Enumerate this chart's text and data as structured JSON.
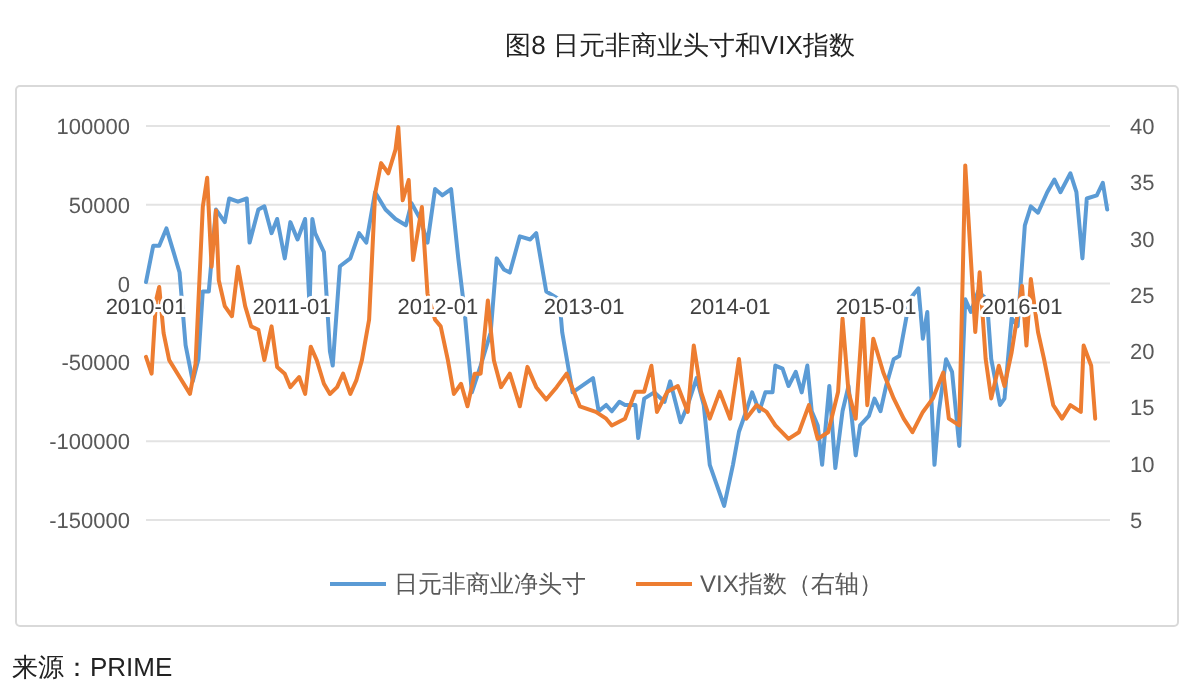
{
  "chart_data": {
    "type": "line",
    "title": "图8 日元非商业头寸和VIX指数",
    "xlim": [
      "2010-01-01",
      "2016-08-08"
    ],
    "xticks": [
      "2010-01",
      "2011-01",
      "2012-01",
      "2013-01",
      "2014-01",
      "2015-01",
      "2016-01"
    ],
    "ylim": [
      -150000,
      100000
    ],
    "yticks": [
      -150000,
      -100000,
      -50000,
      0,
      50000,
      100000
    ],
    "y2lim": [
      5,
      40
    ],
    "y2ticks": [
      5,
      10,
      15,
      20,
      25,
      30,
      35,
      40
    ],
    "grid": "y",
    "legend": "bottom",
    "annotations": [
      "来源：PRIME"
    ],
    "series": [
      {
        "name": "日元非商业净头寸",
        "color": "#5b9bd5",
        "x": [
          "2010-01-01",
          "2010-01-19",
          "2010-02-03",
          "2010-02-21",
          "2010-03-11",
          "2010-03-26",
          "2010-04-10",
          "2010-04-28",
          "2010-05-12",
          "2010-05-23",
          "2010-06-07",
          "2010-06-25",
          "2010-07-17",
          "2010-07-28",
          "2010-08-19",
          "2010-09-10",
          "2010-09-17",
          "2010-10-09",
          "2010-10-24",
          "2010-11-11",
          "2010-11-25",
          "2010-12-14",
          "2010-12-28",
          "2011-01-15",
          "2011-02-03",
          "2011-02-14",
          "2011-02-21",
          "2011-02-28",
          "2011-03-22",
          "2011-04-06",
          "2011-04-13",
          "2011-05-01",
          "2011-05-27",
          "2011-06-18",
          "2011-07-06",
          "2011-07-28",
          "2011-08-23",
          "2011-09-17",
          "2011-10-13",
          "2011-10-27",
          "2011-11-18",
          "2011-12-06",
          "2011-12-25",
          "2012-01-12",
          "2012-02-03",
          "2012-02-21",
          "2012-03-08",
          "2012-03-26",
          "2012-04-17",
          "2012-05-12",
          "2012-05-27",
          "2012-06-14",
          "2012-06-29",
          "2012-07-24",
          "2012-08-19",
          "2012-09-03",
          "2012-09-28",
          "2012-10-31",
          "2012-11-07",
          "2012-12-03",
          "2013-01-23",
          "2013-02-06",
          "2013-02-25",
          "2013-03-11",
          "2013-03-30",
          "2013-04-13",
          "2013-05-09",
          "2013-05-16",
          "2013-05-31",
          "2013-06-25",
          "2013-07-21",
          "2013-08-04",
          "2013-08-30",
          "2013-09-17",
          "2013-10-09",
          "2013-10-27",
          "2013-11-11",
          "2013-11-29",
          "2013-12-17",
          "2014-01-08",
          "2014-01-23",
          "2014-02-10",
          "2014-02-25",
          "2014-03-15",
          "2014-03-30",
          "2014-04-17",
          "2014-04-24",
          "2014-05-12",
          "2014-05-27",
          "2014-06-14",
          "2014-06-29",
          "2014-07-13",
          "2014-07-24",
          "2014-08-08",
          "2014-08-19",
          "2014-09-06",
          "2014-09-21",
          "2014-10-09",
          "2014-10-24",
          "2014-11-11",
          "2014-11-22",
          "2014-12-14",
          "2014-12-28",
          "2015-01-12",
          "2015-01-26",
          "2015-02-14",
          "2015-02-28",
          "2015-03-26",
          "2015-04-17",
          "2015-04-28",
          "2015-05-09",
          "2015-05-27",
          "2015-06-07",
          "2015-06-25",
          "2015-07-10",
          "2015-07-28",
          "2015-08-12",
          "2015-08-26",
          "2015-09-13",
          "2015-10-05",
          "2015-10-16",
          "2015-11-07",
          "2015-11-18",
          "2015-12-06",
          "2015-12-21",
          "2016-01-08",
          "2016-01-23",
          "2016-02-10",
          "2016-03-04",
          "2016-03-22",
          "2016-04-06",
          "2016-05-01",
          "2016-05-16",
          "2016-05-31",
          "2016-06-11",
          "2016-07-06",
          "2016-07-21",
          "2016-08-01"
        ],
        "values": [
          1000,
          24000,
          24000,
          35000,
          20000,
          7000,
          -39000,
          -62000,
          -48000,
          -5000,
          -5000,
          47000,
          39000,
          54000,
          52000,
          54000,
          26000,
          47000,
          49000,
          32000,
          41000,
          16000,
          39000,
          28000,
          41000,
          -14000,
          41000,
          32000,
          20000,
          -43000,
          -52000,
          11000,
          16000,
          32000,
          26000,
          58000,
          47000,
          41000,
          37000,
          51000,
          41000,
          26000,
          60000,
          56000,
          60000,
          16000,
          -18000,
          -69000,
          -52000,
          -31000,
          16000,
          9000,
          7000,
          30000,
          28000,
          32000,
          -5000,
          -10000,
          -31000,
          -69000,
          -60000,
          -81000,
          -77000,
          -81000,
          -75000,
          -77000,
          -77000,
          -98000,
          -73000,
          -69000,
          -75000,
          -62000,
          -88000,
          -77000,
          -60000,
          -77000,
          -115000,
          -128000,
          -141000,
          -115000,
          -94000,
          -81000,
          -69000,
          -81000,
          -69000,
          -69000,
          -52000,
          -54000,
          -65000,
          -56000,
          -69000,
          -52000,
          -81000,
          -90000,
          -115000,
          -65000,
          -117000,
          -81000,
          -65000,
          -109000,
          -90000,
          -84000,
          -73000,
          -81000,
          -65000,
          -48000,
          -46000,
          -10000,
          -3000,
          -35000,
          -18000,
          -115000,
          -81000,
          -48000,
          -56000,
          -103000,
          -10000,
          -18000,
          -5000,
          -10000,
          -48000,
          -77000,
          -73000,
          -22000,
          -27000,
          37000,
          49000,
          45000,
          58000,
          66000,
          58000,
          70000,
          58000,
          16000,
          54000,
          56000,
          64000,
          47000
        ]
      },
      {
        "name": "VIX指数（右轴）",
        "color": "#ed7d31",
        "axis": "y2",
        "x": [
          "2010-01-01",
          "2010-01-15",
          "2010-01-26",
          "2010-02-03",
          "2010-02-14",
          "2010-02-28",
          "2010-03-26",
          "2010-04-21",
          "2010-05-05",
          "2010-05-23",
          "2010-06-03",
          "2010-06-14",
          "2010-06-25",
          "2010-07-02",
          "2010-07-17",
          "2010-08-04",
          "2010-08-19",
          "2010-09-06",
          "2010-09-21",
          "2010-10-09",
          "2010-10-24",
          "2010-11-11",
          "2010-11-25",
          "2010-12-14",
          "2010-12-28",
          "2011-01-19",
          "2011-02-03",
          "2011-02-17",
          "2011-03-04",
          "2011-03-22",
          "2011-04-06",
          "2011-04-24",
          "2011-05-09",
          "2011-05-27",
          "2011-06-11",
          "2011-06-25",
          "2011-07-13",
          "2011-07-28",
          "2011-08-12",
          "2011-08-30",
          "2011-09-17",
          "2011-09-24",
          "2011-10-05",
          "2011-10-20",
          "2011-10-31",
          "2011-11-22",
          "2011-12-06",
          "2011-12-25",
          "2012-01-08",
          "2012-01-26",
          "2012-02-10",
          "2012-02-28",
          "2012-03-15",
          "2012-04-02",
          "2012-04-17",
          "2012-05-05",
          "2012-05-20",
          "2012-06-07",
          "2012-06-29",
          "2012-07-24",
          "2012-08-12",
          "2012-09-03",
          "2012-09-28",
          "2012-10-24",
          "2012-11-18",
          "2012-12-21",
          "2013-01-30",
          "2013-02-25",
          "2013-03-11",
          "2013-04-13",
          "2013-05-09",
          "2013-05-31",
          "2013-06-18",
          "2013-07-02",
          "2013-07-28",
          "2013-08-23",
          "2013-09-17",
          "2013-10-02",
          "2013-10-20",
          "2013-11-11",
          "2013-12-06",
          "2014-01-01",
          "2014-01-23",
          "2014-02-10",
          "2014-03-08",
          "2014-04-02",
          "2014-04-24",
          "2014-05-27",
          "2014-06-22",
          "2014-07-17",
          "2014-08-08",
          "2014-09-03",
          "2014-09-28",
          "2014-10-09",
          "2014-10-24",
          "2014-11-11",
          "2014-11-29",
          "2014-12-10",
          "2014-12-25",
          "2015-01-19",
          "2015-02-14",
          "2015-03-11",
          "2015-04-02",
          "2015-04-28",
          "2015-05-23",
          "2015-06-18",
          "2015-07-02",
          "2015-07-28",
          "2015-08-12",
          "2015-08-26",
          "2015-09-06",
          "2015-09-17",
          "2015-10-02",
          "2015-10-16",
          "2015-11-04",
          "2015-11-18",
          "2015-12-06",
          "2016-01-01",
          "2016-01-12",
          "2016-01-23",
          "2016-02-10",
          "2016-02-25",
          "2016-03-19",
          "2016-04-10",
          "2016-05-01",
          "2016-05-27",
          "2016-06-03",
          "2016-06-22",
          "2016-07-02"
        ],
        "values": [
          19.5,
          18.0,
          24.5,
          25.7,
          21.6,
          19.2,
          17.7,
          16.2,
          18.9,
          32.8,
          35.4,
          27.5,
          32.5,
          26.3,
          24.0,
          23.1,
          27.5,
          24.0,
          22.2,
          21.9,
          19.2,
          22.2,
          18.6,
          18.0,
          16.8,
          17.7,
          16.2,
          20.4,
          19.2,
          17.1,
          16.2,
          16.8,
          18.0,
          16.2,
          17.4,
          19.2,
          22.8,
          34.0,
          36.7,
          35.8,
          37.9,
          39.9,
          33.4,
          35.2,
          28.1,
          32.8,
          25.1,
          22.8,
          22.2,
          19.2,
          16.2,
          17.1,
          15.1,
          18.0,
          18.0,
          24.5,
          19.2,
          16.8,
          18.0,
          15.1,
          18.6,
          16.8,
          15.7,
          16.8,
          18.0,
          15.1,
          14.6,
          14.0,
          13.4,
          14.0,
          16.4,
          16.4,
          18.7,
          14.6,
          16.4,
          16.9,
          14.6,
          20.5,
          16.4,
          14.0,
          16.4,
          14.0,
          19.3,
          14.0,
          15.2,
          14.6,
          13.4,
          12.2,
          12.8,
          15.2,
          12.2,
          12.8,
          16.4,
          22.9,
          16.4,
          14.0,
          23.4,
          15.2,
          21.1,
          18.1,
          15.8,
          14.0,
          12.8,
          14.6,
          15.8,
          18.1,
          14.0,
          13.4,
          36.5,
          28.2,
          21.7,
          27.0,
          19.3,
          15.8,
          18.7,
          16.9,
          19.9,
          25.8,
          20.5,
          26.4,
          21.7,
          19.3,
          15.2,
          14.0,
          15.2,
          14.6,
          20.5,
          18.7,
          14.0
        ]
      }
    ]
  }
}
